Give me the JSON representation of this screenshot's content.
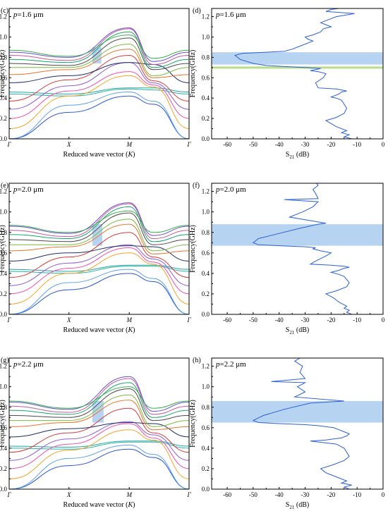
{
  "chart_data": [
    {
      "panel_label": "(c)",
      "type": "line",
      "annotation": "p=1.6 μm",
      "annotation_italic": "p",
      "annotation_rest": "=1.6 ",
      "annotation_unit": "μm",
      "xlabel": "Reduced wave vector (K)",
      "xlabel_main": "Reduced wave vector (",
      "xlabel_italic": "K",
      "xlabel_tail": ")",
      "ylabel": "Frequency(GHz)",
      "xticks": [
        "Γ",
        "X",
        "M",
        "Γ"
      ],
      "yticks": [
        "0.0",
        "0.2",
        "0.4",
        "0.6",
        "0.8",
        "1.0",
        "1.2"
      ],
      "ylim": [
        0,
        1.28
      ],
      "bandgap": {
        "x": [
          1.85,
          2.05
        ],
        "y": [
          0.74,
          0.9
        ]
      },
      "series": [
        {
          "values": [
            0.0,
            0.26,
            0.42,
            0.34,
            0.0
          ]
        },
        {
          "values": [
            0.0,
            0.33,
            0.46,
            0.37,
            0.0
          ]
        },
        {
          "values": [
            0.44,
            0.42,
            0.49,
            0.48,
            0.44
          ]
        },
        {
          "values": [
            0.46,
            0.44,
            0.5,
            0.5,
            0.46
          ]
        },
        {
          "values": [
            0.1,
            0.42,
            0.62,
            0.51,
            0.1
          ]
        },
        {
          "values": [
            0.2,
            0.47,
            0.66,
            0.53,
            0.2
          ]
        },
        {
          "values": [
            0.29,
            0.52,
            0.75,
            0.55,
            0.29
          ]
        },
        {
          "values": [
            0.37,
            0.58,
            0.82,
            0.57,
            0.37
          ]
        },
        {
          "values": [
            0.55,
            0.62,
            0.75,
            0.73,
            0.55
          ]
        },
        {
          "values": [
            0.63,
            0.68,
            0.88,
            0.6,
            0.63
          ]
        },
        {
          "values": [
            0.7,
            0.7,
            0.93,
            0.62,
            0.7
          ]
        },
        {
          "values": [
            0.74,
            0.72,
            0.99,
            0.68,
            0.74
          ]
        },
        {
          "values": [
            0.78,
            0.75,
            1.05,
            0.7,
            0.78
          ]
        },
        {
          "values": [
            0.82,
            0.77,
            1.08,
            0.73,
            0.82
          ]
        },
        {
          "values": [
            0.85,
            0.8,
            1.09,
            0.76,
            0.85
          ]
        },
        {
          "values": [
            0.87,
            0.81,
            1.02,
            0.79,
            0.87
          ]
        }
      ]
    },
    {
      "panel_label": "(d)",
      "type": "line",
      "annotation": "p=1.6 μm",
      "annotation_italic": "p",
      "annotation_rest": "=1.6 ",
      "annotation_unit": "μm",
      "xlabel": "S21 (dB)",
      "xlabel_main": "S",
      "xlabel_sub": "21",
      "xlabel_tail": " (dB)",
      "ylabel": "Frequency(GHz)",
      "xticks": [
        "-60",
        "-50",
        "-40",
        "-30",
        "-20",
        "-10",
        "0"
      ],
      "yticks": [
        "0.0",
        "0.2",
        "0.4",
        "0.6",
        "0.8",
        "1.0",
        "1.2"
      ],
      "xlim": [
        -66,
        0
      ],
      "ylim": [
        0,
        1.28
      ],
      "bandgap": {
        "y": [
          0.73,
          0.85
        ]
      },
      "green_line": 0.7,
      "series": [
        {
          "x": [
            -12,
            -15,
            -13,
            -16,
            -14,
            -18,
            -20,
            -22,
            -18,
            -15,
            -14,
            -15,
            -16,
            -18,
            -20,
            -17,
            -16,
            -14,
            -16,
            -18,
            -25,
            -26,
            -23,
            -22,
            -25,
            -28,
            -26,
            -24,
            -30,
            -38,
            -45,
            -50,
            -55,
            -57,
            -54,
            -45,
            -38,
            -35,
            -33,
            -30,
            -27,
            -29,
            -30,
            -27,
            -24,
            -23,
            -20,
            -22,
            -24,
            -22,
            -18,
            -11,
            -22,
            -20,
            -17
          ],
          "y": [
            0.0,
            0.02,
            0.04,
            0.06,
            0.08,
            0.12,
            0.15,
            0.18,
            0.21,
            0.25,
            0.3,
            0.34,
            0.38,
            0.4,
            0.41,
            0.44,
            0.46,
            0.47,
            0.48,
            0.49,
            0.5,
            0.55,
            0.6,
            0.64,
            0.66,
            0.67,
            0.68,
            0.69,
            0.7,
            0.71,
            0.72,
            0.74,
            0.78,
            0.82,
            0.84,
            0.85,
            0.86,
            0.88,
            0.9,
            0.93,
            0.96,
            0.98,
            1.0,
            1.02,
            1.05,
            1.08,
            1.1,
            1.12,
            1.14,
            1.16,
            1.2,
            1.23,
            1.25,
            1.27,
            1.28
          ]
        }
      ]
    },
    {
      "panel_label": "(e)",
      "type": "line",
      "annotation": "p=2.0 μm",
      "annotation_italic": "p",
      "annotation_rest": "=2.0 ",
      "annotation_unit": "μm",
      "xlabel": "Reduced wave vector (K)",
      "xlabel_main": "Reduced wave vector (",
      "xlabel_italic": "K",
      "xlabel_tail": ")",
      "ylabel": "Frequency(GHz)",
      "xticks": [
        "Γ",
        "X",
        "M",
        "Γ"
      ],
      "yticks": [
        "0.0",
        "0.2",
        "0.4",
        "0.6",
        "0.8",
        "1.0",
        "1.2"
      ],
      "ylim": [
        0,
        1.28
      ],
      "bandgap": {
        "x": [
          1.85,
          2.07
        ],
        "y": [
          0.67,
          0.88
        ]
      },
      "series": [
        {
          "values": [
            0.0,
            0.24,
            0.4,
            0.32,
            0.0
          ]
        },
        {
          "values": [
            0.0,
            0.31,
            0.44,
            0.35,
            0.0
          ]
        },
        {
          "values": [
            0.42,
            0.4,
            0.47,
            0.47,
            0.42
          ]
        },
        {
          "values": [
            0.44,
            0.42,
            0.48,
            0.48,
            0.44
          ]
        },
        {
          "values": [
            0.1,
            0.4,
            0.6,
            0.49,
            0.1
          ]
        },
        {
          "values": [
            0.2,
            0.45,
            0.65,
            0.51,
            0.2
          ]
        },
        {
          "values": [
            0.28,
            0.5,
            0.68,
            0.54,
            0.28
          ]
        },
        {
          "values": [
            0.36,
            0.56,
            0.8,
            0.56,
            0.36
          ]
        },
        {
          "values": [
            0.52,
            0.6,
            0.67,
            0.66,
            0.52
          ]
        },
        {
          "values": [
            0.62,
            0.66,
            0.88,
            0.59,
            0.62
          ]
        },
        {
          "values": [
            0.68,
            0.68,
            0.93,
            0.62,
            0.68
          ]
        },
        {
          "values": [
            0.73,
            0.71,
            0.99,
            0.68,
            0.73
          ]
        },
        {
          "values": [
            0.78,
            0.74,
            1.05,
            0.71,
            0.78
          ]
        },
        {
          "values": [
            0.82,
            0.76,
            1.08,
            0.74,
            0.82
          ]
        },
        {
          "values": [
            0.86,
            0.79,
            1.09,
            0.77,
            0.86
          ]
        },
        {
          "values": [
            0.87,
            0.8,
            1.01,
            0.8,
            0.87
          ]
        }
      ]
    },
    {
      "panel_label": "(f)",
      "type": "line",
      "annotation": "p=2.0 μm",
      "annotation_italic": "p",
      "annotation_rest": "=2.0 ",
      "annotation_unit": "μm",
      "xlabel": "S21 (dB)",
      "xlabel_main": "S",
      "xlabel_sub": "21",
      "xlabel_tail": " (dB)",
      "ylabel": "Frequency(GHz)",
      "xticks": [
        "-60",
        "-50",
        "-40",
        "-30",
        "-20",
        "-10",
        "0"
      ],
      "yticks": [
        "0.0",
        "0.2",
        "0.4",
        "0.6",
        "0.8",
        "1.0",
        "1.2"
      ],
      "xlim": [
        -66,
        0
      ],
      "ylim": [
        0,
        1.28
      ],
      "bandgap": {
        "y": [
          0.67,
          0.88
        ]
      },
      "series": [
        {
          "x": [
            -12,
            -14,
            -13,
            -15,
            -14,
            -17,
            -19,
            -22,
            -18,
            -14,
            -13,
            -14,
            -15,
            -17,
            -20,
            -17,
            -15,
            -13,
            -15,
            -20,
            -28,
            -26,
            -22,
            -20,
            -24,
            -27,
            -26,
            -30,
            -40,
            -48,
            -50,
            -48,
            -40,
            -32,
            -25,
            -22,
            -36,
            -31,
            -27,
            -25,
            -38,
            -25,
            -26,
            -27,
            -25,
            -26
          ],
          "y": [
            0.0,
            0.02,
            0.04,
            0.06,
            0.08,
            0.12,
            0.16,
            0.2,
            0.23,
            0.27,
            0.31,
            0.34,
            0.37,
            0.39,
            0.41,
            0.43,
            0.45,
            0.46,
            0.47,
            0.48,
            0.49,
            0.52,
            0.57,
            0.6,
            0.62,
            0.64,
            0.65,
            0.66,
            0.67,
            0.68,
            0.7,
            0.74,
            0.79,
            0.84,
            0.88,
            0.89,
            0.95,
            1.0,
            1.05,
            1.1,
            1.12,
            1.13,
            1.18,
            1.22,
            1.26,
            1.29
          ]
        }
      ]
    },
    {
      "panel_label": "(g)",
      "type": "line",
      "annotation": "p=2.2 μm",
      "annotation_italic": "p",
      "annotation_rest": "=2.2 ",
      "annotation_unit": "μm",
      "xlabel": "Reduced wave vector (K)",
      "xlabel_main": "Reduced wave vector (",
      "xlabel_italic": "K",
      "xlabel_tail": ")",
      "ylabel": "Frequency(GHz)",
      "xticks": [
        "Γ",
        "X",
        "M",
        "Γ"
      ],
      "yticks": [
        "0.0",
        "0.2",
        "0.4",
        "0.6",
        "0.8",
        "1.0",
        "1.2"
      ],
      "ylim": [
        0,
        1.28
      ],
      "bandgap": {
        "x": [
          1.85,
          2.1
        ],
        "y": [
          0.65,
          0.86
        ]
      },
      "series": [
        {
          "values": [
            0.0,
            0.23,
            0.39,
            0.31,
            0.0
          ]
        },
        {
          "values": [
            0.0,
            0.3,
            0.43,
            0.34,
            0.0
          ]
        },
        {
          "values": [
            0.4,
            0.39,
            0.46,
            0.46,
            0.4
          ]
        },
        {
          "values": [
            0.42,
            0.41,
            0.47,
            0.47,
            0.42
          ]
        },
        {
          "values": [
            0.1,
            0.38,
            0.58,
            0.48,
            0.1
          ]
        },
        {
          "values": [
            0.2,
            0.44,
            0.64,
            0.5,
            0.2
          ]
        },
        {
          "values": [
            0.28,
            0.49,
            0.66,
            0.53,
            0.28
          ]
        },
        {
          "values": [
            0.36,
            0.55,
            0.79,
            0.55,
            0.36
          ]
        },
        {
          "values": [
            0.51,
            0.59,
            0.65,
            0.64,
            0.51
          ]
        },
        {
          "values": [
            0.61,
            0.65,
            0.87,
            0.58,
            0.61
          ]
        },
        {
          "values": [
            0.67,
            0.67,
            0.92,
            0.61,
            0.67
          ]
        },
        {
          "values": [
            0.72,
            0.7,
            0.98,
            0.67,
            0.72
          ]
        },
        {
          "values": [
            0.77,
            0.73,
            1.04,
            0.7,
            0.77
          ]
        },
        {
          "values": [
            0.81,
            0.75,
            1.08,
            0.73,
            0.81
          ]
        },
        {
          "values": [
            0.85,
            0.78,
            1.1,
            0.76,
            0.85
          ]
        },
        {
          "values": [
            0.86,
            0.79,
            1.0,
            0.79,
            0.86
          ]
        }
      ]
    },
    {
      "panel_label": "(h)",
      "type": "line",
      "annotation": "p=2.2 μm",
      "annotation_italic": "p",
      "annotation_rest": "=2.2 ",
      "annotation_unit": "μm",
      "xlabel": "S21 (dB)",
      "xlabel_main": "S",
      "xlabel_sub": "21",
      "xlabel_tail": " (dB)",
      "ylabel": "Frequency(GHz)",
      "xticks": [
        "-60",
        "-50",
        "-40",
        "-30",
        "-20",
        "-10",
        "0"
      ],
      "yticks": [
        "0.0",
        "0.2",
        "0.4",
        "0.6",
        "0.8",
        "1.0",
        "1.2"
      ],
      "xlim": [
        -66,
        0
      ],
      "ylim": [
        0,
        1.28
      ],
      "bandgap": {
        "y": [
          0.65,
          0.86
        ]
      },
      "series": [
        {
          "x": [
            -13,
            -15,
            -12,
            -16,
            -14,
            -18,
            -22,
            -24,
            -19,
            -15,
            -13,
            -14,
            -15,
            -18,
            -28,
            -22,
            -16,
            -14,
            -13,
            -15,
            -17,
            -19,
            -22,
            -25,
            -30,
            -40,
            -48,
            -50,
            -46,
            -38,
            -28,
            -15,
            -34,
            -30,
            -33,
            -30,
            -43,
            -30,
            -32,
            -31,
            -34,
            -32
          ],
          "y": [
            0.0,
            0.02,
            0.04,
            0.06,
            0.08,
            0.12,
            0.16,
            0.2,
            0.24,
            0.28,
            0.32,
            0.36,
            0.4,
            0.44,
            0.47,
            0.48,
            0.5,
            0.52,
            0.54,
            0.56,
            0.58,
            0.6,
            0.61,
            0.62,
            0.63,
            0.64,
            0.65,
            0.67,
            0.72,
            0.78,
            0.84,
            0.86,
            0.9,
            0.95,
            1.0,
            1.04,
            1.05,
            1.08,
            1.14,
            1.2,
            1.25,
            1.28
          ]
        }
      ]
    }
  ]
}
